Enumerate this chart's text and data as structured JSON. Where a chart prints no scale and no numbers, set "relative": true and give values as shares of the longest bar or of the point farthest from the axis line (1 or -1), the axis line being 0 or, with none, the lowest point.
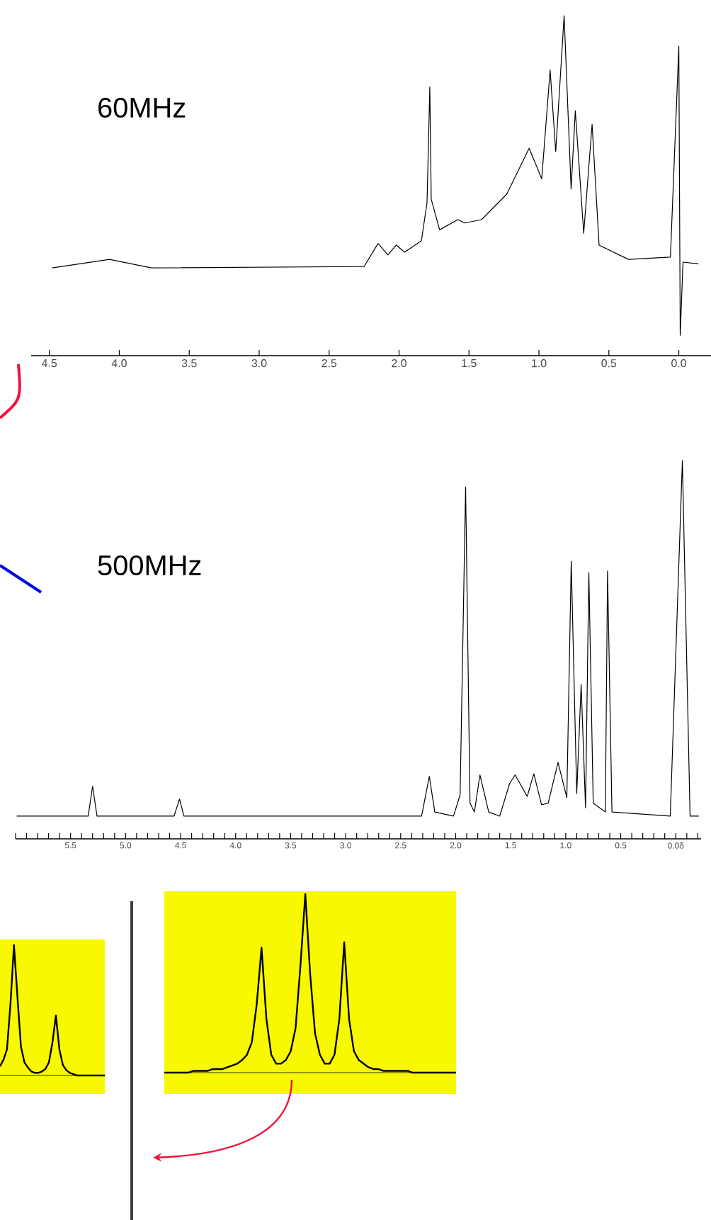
{
  "chart_data": [
    {
      "type": "line",
      "title": "60MHz",
      "relative": true,
      "color": "#000000",
      "x": [
        4.48,
        4.07,
        3.77,
        2.25,
        2.15,
        2.08,
        2.02,
        1.96,
        1.84,
        1.8,
        1.78,
        1.77,
        1.71,
        1.58,
        1.53,
        1.41,
        1.23,
        1.07,
        0.98,
        0.92,
        0.88,
        0.82,
        0.77,
        0.74,
        0.68,
        0.62,
        0.57,
        0.36,
        0.06,
        0.0,
        -0.01,
        -0.03,
        -0.14
      ],
      "values": [
        0.258,
        0.283,
        0.258,
        0.262,
        0.33,
        0.296,
        0.325,
        0.304,
        0.338,
        0.45,
        0.79,
        0.46,
        0.37,
        0.4,
        0.39,
        0.4,
        0.475,
        0.61,
        0.52,
        0.84,
        0.6,
        1.0,
        0.49,
        0.72,
        0.36,
        0.68,
        0.325,
        0.283,
        0.29,
        0.91,
        0.06,
        0.275,
        0.27
      ],
      "xlim": [
        4.63,
        -0.23
      ],
      "xticks": [
        4.5,
        {
          "value": 4,
          "label": "4.0"
        },
        3.5,
        {
          "value": 3,
          "label": "3.0"
        },
        2.5,
        {
          "value": 2,
          "label": "2.0"
        },
        1.5,
        {
          "value": 1,
          "label": "1.0"
        },
        0.5,
        {
          "value": 0,
          "label": "0.0"
        }
      ]
    },
    {
      "type": "line",
      "title": "500MHz",
      "relative": true,
      "color": "#000000",
      "x": [
        5.99,
        5.34,
        5.3,
        5.26,
        4.56,
        4.51,
        4.47,
        2.31,
        2.24,
        2.19,
        2.02,
        1.96,
        1.91,
        1.87,
        1.83,
        1.78,
        1.7,
        1.6,
        1.51,
        1.46,
        1.35,
        1.29,
        1.22,
        1.16,
        1.07,
        0.99,
        0.95,
        0.9,
        0.86,
        0.82,
        0.79,
        0.75,
        0.64,
        0.62,
        0.58,
        0.05,
        -0.06,
        -0.13,
        -0.21
      ],
      "values": [
        0.06,
        0.06,
        0.139,
        0.06,
        0.06,
        0.105,
        0.06,
        0.06,
        0.165,
        0.071,
        0.06,
        0.116,
        0.93,
        0.094,
        0.071,
        0.169,
        0.071,
        0.06,
        0.146,
        0.169,
        0.112,
        0.172,
        0.09,
        0.094,
        0.202,
        0.109,
        0.734,
        0.12,
        0.408,
        0.082,
        0.704,
        0.094,
        0.071,
        0.708,
        0.071,
        0.06,
        1.0,
        0.06,
        0.06
      ],
      "xlim": [
        6.0,
        -0.23
      ],
      "xticks": [
        {
          "value": 6,
          "label": null
        },
        {
          "value": 5.9,
          "label": null
        },
        {
          "value": 5.8,
          "label": null
        },
        {
          "value": 5.7,
          "label": null
        },
        {
          "value": 5.6,
          "label": null
        },
        5.5,
        {
          "value": 5.4,
          "label": null
        },
        {
          "value": 5.3,
          "label": null
        },
        {
          "value": 5.2,
          "label": null
        },
        {
          "value": 5.1,
          "label": null
        },
        {
          "value": 5,
          "label": "5.0"
        },
        {
          "value": 4.9,
          "label": null
        },
        {
          "value": 4.8,
          "label": null
        },
        {
          "value": 4.7,
          "label": null
        },
        {
          "value": 4.6,
          "label": null
        },
        4.5,
        {
          "value": 4.4,
          "label": null
        },
        {
          "value": 4.3,
          "label": null
        },
        {
          "value": 4.2,
          "label": null
        },
        {
          "value": 4.1,
          "label": null
        },
        {
          "value": 4,
          "label": "4.0"
        },
        {
          "value": 3.9,
          "label": null
        },
        {
          "value": 3.8,
          "label": null
        },
        {
          "value": 3.7,
          "label": null
        },
        {
          "value": 3.6,
          "label": null
        },
        3.5,
        {
          "value": 3.4,
          "label": null
        },
        {
          "value": 3.3,
          "label": null
        },
        {
          "value": 3.2,
          "label": null
        },
        {
          "value": 3.1,
          "label": null
        },
        {
          "value": 3,
          "label": "3.0"
        },
        {
          "value": 2.9,
          "label": null
        },
        {
          "value": 2.8,
          "label": null
        },
        {
          "value": 2.7,
          "label": null
        },
        {
          "value": 2.6,
          "label": null
        },
        2.5,
        {
          "value": 2.4,
          "label": null
        },
        {
          "value": 2.3,
          "label": null
        },
        {
          "value": 2.2,
          "label": null
        },
        {
          "value": 2.1,
          "label": null
        },
        {
          "value": 2,
          "label": "2.0"
        },
        {
          "value": 1.9,
          "label": null
        },
        {
          "value": 1.8,
          "label": null
        },
        {
          "value": 1.7,
          "label": null
        },
        {
          "value": 1.6,
          "label": null
        },
        1.5,
        {
          "value": 1.4,
          "label": null
        },
        {
          "value": 1.3,
          "label": null
        },
        {
          "value": 1.2,
          "label": null
        },
        {
          "value": 1.1,
          "label": null
        },
        {
          "value": 1,
          "label": "1.0"
        },
        {
          "value": 0.9,
          "label": null
        },
        {
          "value": 0.8,
          "label": null
        },
        {
          "value": 0.7,
          "label": null
        },
        {
          "value": 0.6,
          "label": null
        },
        0.5,
        {
          "value": 0.4,
          "label": null
        },
        {
          "value": 0.3,
          "label": null
        },
        {
          "value": 0.2,
          "label": null
        },
        {
          "value": 0.1,
          "label": null
        },
        {
          "value": 0,
          "label": "0.0δ"
        },
        {
          "value": -0.1,
          "label": null
        },
        {
          "value": -0.2,
          "label": null
        }
      ]
    },
    {
      "type": "line",
      "relative": true,
      "color": "#000000",
      "categories": [
        null,
        null,
        null,
        null,
        null,
        null,
        null,
        null,
        null,
        null,
        null,
        null,
        null,
        null,
        null,
        null,
        null,
        null,
        null,
        null,
        null,
        null,
        null,
        null,
        null,
        null,
        null,
        null,
        null,
        null,
        null
      ],
      "values": [
        0.07,
        0.12,
        0.2,
        0.55,
        1.0,
        0.6,
        0.22,
        0.1,
        0.06,
        0.03,
        0.02,
        0.02,
        0.03,
        0.05,
        0.1,
        0.25,
        0.46,
        0.2,
        0.08,
        0.04,
        0.02,
        0.01,
        0,
        0,
        0,
        0,
        0,
        0,
        0,
        0,
        0
      ]
    },
    {
      "type": "line",
      "relative": true,
      "color": "#000000",
      "categories": [
        null,
        null,
        null,
        null,
        null,
        null,
        null,
        null,
        null,
        null,
        null,
        null,
        null,
        null,
        null,
        null,
        null,
        null,
        null,
        null,
        null,
        null,
        null,
        null,
        null,
        null,
        null,
        null,
        null,
        null,
        null,
        null,
        null,
        null,
        null,
        null,
        null,
        null,
        null,
        null,
        null,
        null,
        null,
        null,
        null,
        null,
        null,
        null,
        null,
        null,
        null,
        null,
        null,
        null,
        null,
        null,
        null,
        null,
        null,
        null,
        null
      ],
      "values": [
        0,
        0,
        0,
        0,
        0,
        0,
        0.01,
        0.01,
        0.01,
        0.01,
        0.02,
        0.02,
        0.02,
        0.03,
        0.04,
        0.05,
        0.07,
        0.1,
        0.17,
        0.38,
        0.7,
        0.3,
        0.1,
        0.05,
        0.05,
        0.07,
        0.12,
        0.25,
        0.6,
        1.0,
        0.55,
        0.22,
        0.1,
        0.05,
        0.05,
        0.1,
        0.3,
        0.73,
        0.3,
        0.12,
        0.07,
        0.05,
        0.03,
        0.02,
        0.02,
        0.01,
        0.01,
        0.01,
        0.01,
        0.01,
        0.01,
        0,
        0,
        0,
        0,
        0,
        0,
        0,
        0,
        0,
        0
      ]
    }
  ]
}
